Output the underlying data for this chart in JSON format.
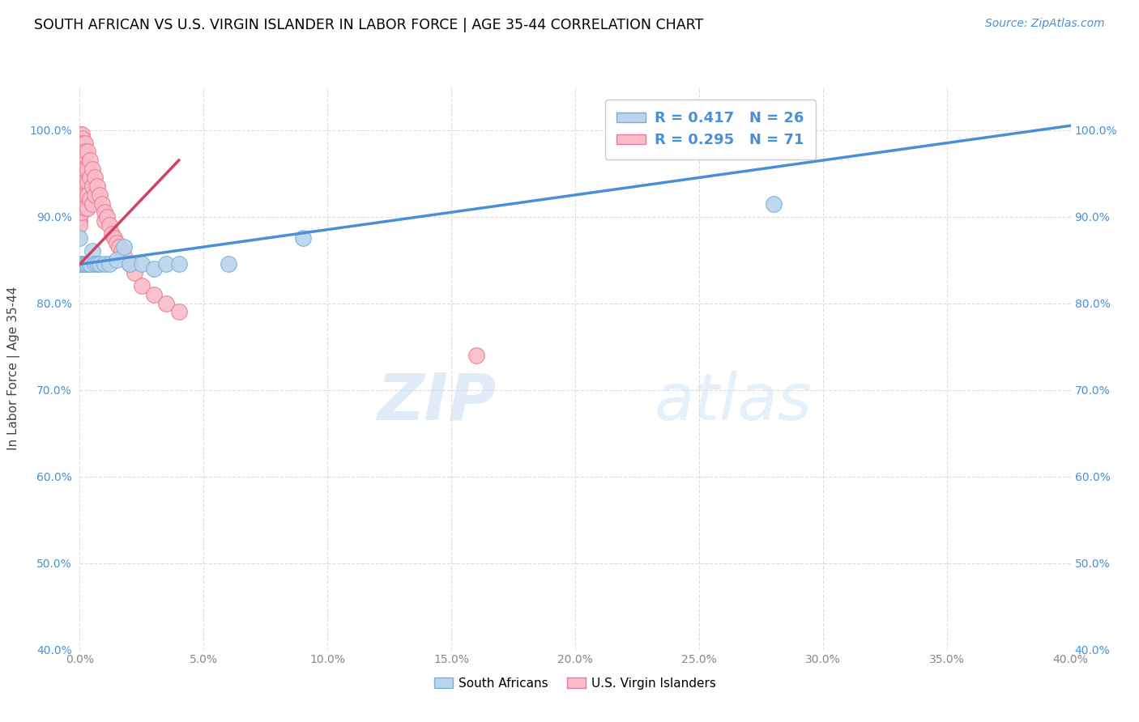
{
  "title": "SOUTH AFRICAN VS U.S. VIRGIN ISLANDER IN LABOR FORCE | AGE 35-44 CORRELATION CHART",
  "source": "Source: ZipAtlas.com",
  "xlabel": "",
  "ylabel": "In Labor Force | Age 35-44",
  "xlim": [
    0.0,
    0.4
  ],
  "ylim": [
    0.4,
    1.05
  ],
  "xticks": [
    0.0,
    0.05,
    0.1,
    0.15,
    0.2,
    0.25,
    0.3,
    0.35,
    0.4
  ],
  "yticks": [
    0.4,
    0.5,
    0.6,
    0.7,
    0.8,
    0.9,
    1.0
  ],
  "ytick_labels": [
    "40.0%",
    "50.0%",
    "60.0%",
    "70.0%",
    "80.0%",
    "90.0%",
    "100.0%"
  ],
  "xtick_labels": [
    "0.0%",
    "5.0%",
    "10.0%",
    "15.0%",
    "20.0%",
    "25.0%",
    "30.0%",
    "35.0%",
    "40.0%"
  ],
  "watermark_zip": "ZIP",
  "watermark_atlas": "atlas",
  "sa_color": "#b8d4ee",
  "vi_color": "#f9bcc8",
  "sa_edge": "#7aafd4",
  "vi_edge": "#e87c96",
  "sa_line_color": "#4a90d9",
  "vi_line_color": "#d44060",
  "grid_color": "#dddddd",
  "sa_line_x0": 0.0,
  "sa_line_x1": 0.4,
  "sa_line_y0": 0.845,
  "sa_line_y1": 1.005,
  "vi_line_x0": 0.0,
  "vi_line_x1": 0.04,
  "vi_line_y0": 0.845,
  "vi_line_y1": 0.965,
  "south_african_x": [
    0.0,
    0.0,
    0.001,
    0.001,
    0.002,
    0.002,
    0.003,
    0.003,
    0.004,
    0.004,
    0.005,
    0.006,
    0.007,
    0.008,
    0.01,
    0.012,
    0.015,
    0.018,
    0.02,
    0.025,
    0.03,
    0.035,
    0.04,
    0.06,
    0.09,
    0.28
  ],
  "south_african_y": [
    0.875,
    0.845,
    0.845,
    0.845,
    0.845,
    0.845,
    0.845,
    0.845,
    0.845,
    0.845,
    0.86,
    0.845,
    0.845,
    0.845,
    0.845,
    0.845,
    0.85,
    0.865,
    0.845,
    0.845,
    0.84,
    0.845,
    0.845,
    0.845,
    0.875,
    0.915
  ],
  "virgin_islander_x": [
    0.0,
    0.0,
    0.0,
    0.0,
    0.0,
    0.0,
    0.0,
    0.0,
    0.0,
    0.0,
    0.0,
    0.0,
    0.0,
    0.0,
    0.0,
    0.0,
    0.0,
    0.0,
    0.0,
    0.0,
    0.0,
    0.001,
    0.001,
    0.001,
    0.001,
    0.001,
    0.001,
    0.001,
    0.001,
    0.001,
    0.001,
    0.001,
    0.002,
    0.002,
    0.002,
    0.002,
    0.002,
    0.002,
    0.003,
    0.003,
    0.003,
    0.003,
    0.003,
    0.004,
    0.004,
    0.004,
    0.005,
    0.005,
    0.005,
    0.006,
    0.006,
    0.007,
    0.008,
    0.009,
    0.01,
    0.01,
    0.011,
    0.012,
    0.013,
    0.014,
    0.015,
    0.016,
    0.017,
    0.018,
    0.02,
    0.022,
    0.025,
    0.03,
    0.035,
    0.04,
    0.16
  ],
  "virgin_islander_y": [
    0.995,
    0.995,
    0.995,
    0.995,
    0.995,
    0.995,
    0.99,
    0.985,
    0.975,
    0.965,
    0.955,
    0.945,
    0.935,
    0.925,
    0.92,
    0.915,
    0.91,
    0.905,
    0.9,
    0.895,
    0.89,
    0.995,
    0.99,
    0.985,
    0.975,
    0.965,
    0.955,
    0.945,
    0.935,
    0.925,
    0.915,
    0.905,
    0.985,
    0.975,
    0.955,
    0.94,
    0.925,
    0.91,
    0.975,
    0.955,
    0.94,
    0.925,
    0.91,
    0.965,
    0.945,
    0.92,
    0.955,
    0.935,
    0.915,
    0.945,
    0.925,
    0.935,
    0.925,
    0.915,
    0.905,
    0.895,
    0.9,
    0.89,
    0.88,
    0.875,
    0.87,
    0.865,
    0.86,
    0.855,
    0.845,
    0.835,
    0.82,
    0.81,
    0.8,
    0.79,
    0.74
  ]
}
